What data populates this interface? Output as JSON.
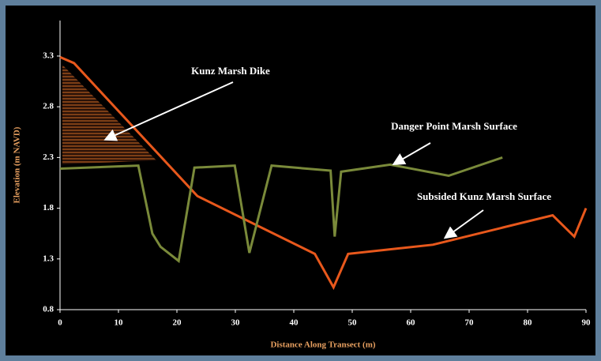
{
  "chart_data": {
    "type": "line",
    "x_label": "Distance Along Transect (m)",
    "y_label": "Elevation (m NAVD)",
    "xlim": [
      0,
      90
    ],
    "ylim": [
      0.8,
      3.65
    ],
    "xticks": [
      0,
      10,
      20,
      30,
      40,
      50,
      60,
      70,
      80,
      90
    ],
    "yticks": [
      0.8,
      1.3,
      1.8,
      2.3,
      2.8,
      3.3
    ],
    "annotations": [
      "Kunz Marsh Dike",
      "Danger Point Marsh Surface",
      "Subsided Kunz Marsh Surface"
    ],
    "series": [
      {
        "name": "Subsided Kunz Marsh Surface",
        "color": "#e8581c",
        "x": [
          0,
          2.4,
          23.5,
          43.6,
          46.8,
          49.3,
          63.8,
          84.3,
          88,
          90
        ],
        "values": [
          3.29,
          3.23,
          1.92,
          1.35,
          1.02,
          1.35,
          1.44,
          1.73,
          1.52,
          1.8
        ]
      },
      {
        "name": "Danger Point Marsh Surface",
        "color": "#7a8a3a",
        "x": [
          0,
          13.4,
          15.8,
          17.2,
          20.3,
          23,
          29.9,
          32.4,
          36.2,
          46.3,
          47,
          48.1,
          56.5,
          66.5,
          75.7
        ],
        "values": [
          2.19,
          2.22,
          1.55,
          1.42,
          1.28,
          2.2,
          2.22,
          1.36,
          2.22,
          2.17,
          1.52,
          2.16,
          2.23,
          2.12,
          2.3
        ]
      }
    ]
  }
}
